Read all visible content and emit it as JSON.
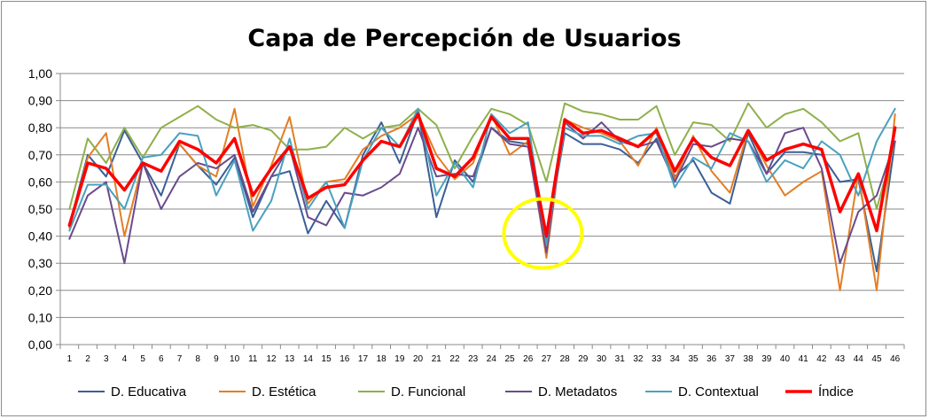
{
  "chart_data": {
    "type": "line",
    "title": "Capa de Percepción de Usuarios",
    "xlabel": "",
    "ylabel": "",
    "ylim": [
      0,
      1
    ],
    "yticks": [
      "0,00",
      "0,10",
      "0,20",
      "0,30",
      "0,40",
      "0,50",
      "0,60",
      "0,70",
      "0,80",
      "0,90",
      "1,00"
    ],
    "grid": true,
    "legend_position": "bottom",
    "categories": [
      "1",
      "2",
      "3",
      "4",
      "5",
      "6",
      "7",
      "8",
      "9",
      "10",
      "11",
      "12",
      "13",
      "14",
      "15",
      "16",
      "17",
      "18",
      "19",
      "20",
      "21",
      "22",
      "23",
      "24",
      "25",
      "26",
      "27",
      "28",
      "29",
      "30",
      "31",
      "32",
      "33",
      "34",
      "35",
      "36",
      "37",
      "38",
      "39",
      "40",
      "41",
      "42",
      "43",
      "44",
      "45",
      "46"
    ],
    "series": [
      {
        "name": "D. Educativa",
        "color": "#3a5f97",
        "width": 2,
        "values": [
          0.44,
          0.7,
          0.62,
          0.79,
          0.67,
          0.55,
          0.74,
          0.66,
          0.59,
          0.69,
          0.47,
          0.62,
          0.64,
          0.41,
          0.53,
          0.43,
          0.7,
          0.82,
          0.67,
          0.86,
          0.47,
          0.68,
          0.6,
          0.8,
          0.75,
          0.74,
          0.39,
          0.78,
          0.74,
          0.74,
          0.72,
          0.67,
          0.76,
          0.62,
          0.68,
          0.56,
          0.52,
          0.78,
          0.63,
          0.71,
          0.71,
          0.7,
          0.6,
          0.61,
          0.27,
          0.75
        ]
      },
      {
        "name": "D. Estética",
        "color": "#e37e25",
        "width": 2,
        "values": [
          0.43,
          0.69,
          0.78,
          0.4,
          0.67,
          0.64,
          0.74,
          0.66,
          0.62,
          0.87,
          0.51,
          0.66,
          0.84,
          0.52,
          0.6,
          0.61,
          0.72,
          0.77,
          0.8,
          0.85,
          0.7,
          0.61,
          0.67,
          0.85,
          0.7,
          0.75,
          0.32,
          0.83,
          0.8,
          0.78,
          0.75,
          0.66,
          0.8,
          0.61,
          0.77,
          0.64,
          0.56,
          0.79,
          0.66,
          0.55,
          0.6,
          0.64,
          0.2,
          0.63,
          0.2,
          0.85
        ]
      },
      {
        "name": "D. Funcional",
        "color": "#8fb04c",
        "width": 2,
        "values": [
          0.5,
          0.76,
          0.67,
          0.8,
          0.69,
          0.8,
          0.84,
          0.88,
          0.83,
          0.8,
          0.81,
          0.79,
          0.72,
          0.72,
          0.73,
          0.8,
          0.76,
          0.8,
          0.81,
          0.87,
          0.81,
          0.65,
          0.77,
          0.87,
          0.85,
          0.81,
          0.6,
          0.89,
          0.86,
          0.85,
          0.83,
          0.83,
          0.88,
          0.7,
          0.82,
          0.81,
          0.75,
          0.89,
          0.8,
          0.85,
          0.87,
          0.82,
          0.75,
          0.78,
          0.5,
          0.75
        ]
      },
      {
        "name": "D. Metadatos",
        "color": "#6a4b8c",
        "width": 2,
        "values": [
          0.39,
          0.55,
          0.6,
          0.3,
          0.67,
          0.5,
          0.62,
          0.67,
          0.65,
          0.7,
          0.49,
          0.62,
          0.73,
          0.47,
          0.44,
          0.56,
          0.55,
          0.58,
          0.63,
          0.8,
          0.62,
          0.63,
          0.62,
          0.8,
          0.74,
          0.73,
          0.34,
          0.82,
          0.76,
          0.82,
          0.75,
          0.73,
          0.75,
          0.6,
          0.74,
          0.73,
          0.76,
          0.75,
          0.63,
          0.78,
          0.8,
          0.65,
          0.3,
          0.49,
          0.55,
          0.75
        ]
      },
      {
        "name": "D. Contextual",
        "color": "#4aa1bf",
        "width": 2,
        "values": [
          0.42,
          0.59,
          0.59,
          0.5,
          0.69,
          0.7,
          0.78,
          0.77,
          0.55,
          0.68,
          0.42,
          0.53,
          0.76,
          0.5,
          0.6,
          0.43,
          0.68,
          0.8,
          0.73,
          0.87,
          0.55,
          0.67,
          0.58,
          0.85,
          0.78,
          0.82,
          0.37,
          0.8,
          0.77,
          0.77,
          0.74,
          0.77,
          0.78,
          0.58,
          0.69,
          0.65,
          0.78,
          0.75,
          0.6,
          0.68,
          0.65,
          0.75,
          0.7,
          0.55,
          0.75,
          0.87
        ]
      },
      {
        "name": "Índice",
        "color": "#ff0000",
        "width": 3.5,
        "values": [
          0.44,
          0.67,
          0.65,
          0.57,
          0.67,
          0.64,
          0.75,
          0.72,
          0.67,
          0.76,
          0.55,
          0.65,
          0.73,
          0.54,
          0.58,
          0.59,
          0.68,
          0.75,
          0.73,
          0.85,
          0.65,
          0.62,
          0.69,
          0.84,
          0.76,
          0.76,
          0.4,
          0.83,
          0.78,
          0.79,
          0.76,
          0.73,
          0.79,
          0.64,
          0.76,
          0.69,
          0.66,
          0.79,
          0.68,
          0.72,
          0.74,
          0.72,
          0.49,
          0.63,
          0.42,
          0.8
        ]
      }
    ],
    "annotations": [
      {
        "type": "ellipse",
        "color": "#ffff00",
        "target_category": "27",
        "center_value": 0.41
      }
    ]
  }
}
